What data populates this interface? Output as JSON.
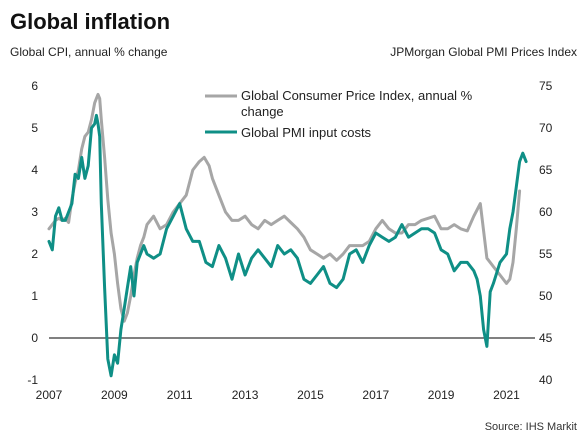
{
  "chart_data": {
    "type": "line",
    "title": "Global inflation",
    "left_axis_label": "Global  CPI, annual % change",
    "right_axis_label": "JPMorgan Global PMI Prices Index",
    "source": "Source: IHS Markit",
    "x_ticks": [
      "2007",
      "2009",
      "2011",
      "2013",
      "2015",
      "2017",
      "2019",
      "2021"
    ],
    "left_ticks": [
      "-1",
      "0",
      "1",
      "2",
      "3",
      "4",
      "5",
      "6"
    ],
    "right_ticks": [
      "40",
      "45",
      "50",
      "55",
      "60",
      "65",
      "70",
      "75"
    ],
    "xlim": [
      2007.0,
      2021.75
    ],
    "left_ylim": [
      -1,
      6
    ],
    "right_ylim": [
      40,
      75
    ],
    "grid": false,
    "legend_position": "top-right",
    "colors": {
      "cpi": "#a6a6a6",
      "pmi": "#0f8f86",
      "zero_line": "#000000"
    },
    "series": [
      {
        "name": "Global Consumer Price Index, annual % change",
        "axis": "left",
        "color": "#a6a6a6",
        "x": [
          2007.0,
          2007.1,
          2007.2,
          2007.3,
          2007.4,
          2007.5,
          2007.6,
          2007.7,
          2007.8,
          2007.9,
          2008.0,
          2008.1,
          2008.2,
          2008.3,
          2008.4,
          2008.5,
          2008.55,
          2008.6,
          2008.7,
          2008.8,
          2008.9,
          2009.0,
          2009.1,
          2009.2,
          2009.3,
          2009.4,
          2009.5,
          2009.6,
          2009.7,
          2009.8,
          2009.9,
          2010.0,
          2010.2,
          2010.4,
          2010.6,
          2010.8,
          2011.0,
          2011.2,
          2011.4,
          2011.6,
          2011.75,
          2011.9,
          2012.0,
          2012.2,
          2012.4,
          2012.6,
          2012.8,
          2013.0,
          2013.2,
          2013.4,
          2013.6,
          2013.8,
          2014.0,
          2014.2,
          2014.4,
          2014.6,
          2014.8,
          2015.0,
          2015.2,
          2015.4,
          2015.6,
          2015.8,
          2016.0,
          2016.2,
          2016.4,
          2016.6,
          2016.8,
          2017.0,
          2017.2,
          2017.4,
          2017.6,
          2017.8,
          2018.0,
          2018.2,
          2018.4,
          2018.6,
          2018.8,
          2019.0,
          2019.2,
          2019.4,
          2019.6,
          2019.8,
          2020.0,
          2020.2,
          2020.4,
          2020.5,
          2020.6,
          2020.8,
          2021.0,
          2021.1,
          2021.2,
          2021.3,
          2021.4
        ],
        "values": [
          2.6,
          2.7,
          2.8,
          2.85,
          2.8,
          2.85,
          2.75,
          3.3,
          3.7,
          4.0,
          4.5,
          4.8,
          4.9,
          5.2,
          5.6,
          5.8,
          5.7,
          5.2,
          4.3,
          3.3,
          2.5,
          2.0,
          1.3,
          0.7,
          0.4,
          0.6,
          1.0,
          1.5,
          1.9,
          2.2,
          2.4,
          2.7,
          2.9,
          2.6,
          2.7,
          3.0,
          3.2,
          3.4,
          4.0,
          4.2,
          4.3,
          4.1,
          3.8,
          3.4,
          3.0,
          2.8,
          2.8,
          2.9,
          2.7,
          2.6,
          2.8,
          2.7,
          2.8,
          2.9,
          2.75,
          2.6,
          2.4,
          2.1,
          2.0,
          1.9,
          2.0,
          1.85,
          2.0,
          2.2,
          2.2,
          2.2,
          2.3,
          2.6,
          2.8,
          2.6,
          2.5,
          2.5,
          2.7,
          2.7,
          2.8,
          2.85,
          2.9,
          2.6,
          2.6,
          2.7,
          2.6,
          2.55,
          2.9,
          3.2,
          1.9,
          1.8,
          1.7,
          1.5,
          1.3,
          1.4,
          1.8,
          2.6,
          3.5
        ]
      },
      {
        "name": "Global PMI input costs",
        "axis": "right",
        "color": "#0f8f86",
        "x": [
          2007.0,
          2007.1,
          2007.2,
          2007.3,
          2007.4,
          2007.5,
          2007.6,
          2007.7,
          2007.8,
          2007.9,
          2008.0,
          2008.1,
          2008.2,
          2008.3,
          2008.4,
          2008.45,
          2008.5,
          2008.55,
          2008.6,
          2008.7,
          2008.8,
          2008.9,
          2009.0,
          2009.1,
          2009.2,
          2009.3,
          2009.4,
          2009.5,
          2009.6,
          2009.7,
          2009.8,
          2009.9,
          2010.0,
          2010.2,
          2010.4,
          2010.6,
          2010.8,
          2011.0,
          2011.2,
          2011.4,
          2011.6,
          2011.8,
          2012.0,
          2012.2,
          2012.4,
          2012.6,
          2012.8,
          2013.0,
          2013.2,
          2013.4,
          2013.6,
          2013.8,
          2014.0,
          2014.2,
          2014.4,
          2014.6,
          2014.8,
          2015.0,
          2015.2,
          2015.4,
          2015.6,
          2015.8,
          2016.0,
          2016.2,
          2016.4,
          2016.6,
          2016.8,
          2017.0,
          2017.2,
          2017.4,
          2017.6,
          2017.8,
          2018.0,
          2018.2,
          2018.4,
          2018.6,
          2018.8,
          2019.0,
          2019.2,
          2019.4,
          2019.6,
          2019.8,
          2020.0,
          2020.1,
          2020.2,
          2020.3,
          2020.4,
          2020.5,
          2020.6,
          2020.8,
          2021.0,
          2021.1,
          2021.2,
          2021.3,
          2021.4,
          2021.5,
          2021.6
        ],
        "values": [
          56.5,
          55.5,
          59.5,
          60.5,
          59.0,
          59.0,
          60.0,
          61.0,
          64.5,
          64.0,
          66.5,
          64.0,
          65.5,
          70.0,
          70.5,
          71.5,
          70.5,
          69.0,
          61.0,
          51.0,
          42.5,
          40.5,
          43.0,
          42.0,
          46.0,
          48.5,
          51.0,
          53.5,
          50.0,
          54.0,
          55.0,
          56.0,
          55.0,
          54.5,
          55.0,
          58.0,
          59.5,
          61.0,
          58.0,
          56.5,
          56.5,
          54.0,
          53.5,
          56.0,
          54.5,
          52.0,
          55.0,
          52.5,
          54.5,
          55.5,
          54.5,
          53.5,
          56.0,
          55.0,
          55.5,
          54.5,
          52.0,
          51.5,
          52.5,
          53.5,
          51.5,
          51.0,
          52.0,
          55.0,
          55.5,
          54.0,
          56.0,
          57.5,
          57.0,
          56.5,
          57.0,
          58.5,
          57.0,
          57.5,
          58.0,
          58.0,
          57.5,
          55.5,
          55.0,
          53.0,
          54.0,
          54.0,
          53.0,
          52.0,
          50.0,
          46.0,
          44.0,
          50.5,
          51.5,
          54.0,
          55.0,
          58.0,
          60.0,
          63.0,
          66.0,
          67.0,
          66.0
        ]
      }
    ]
  }
}
